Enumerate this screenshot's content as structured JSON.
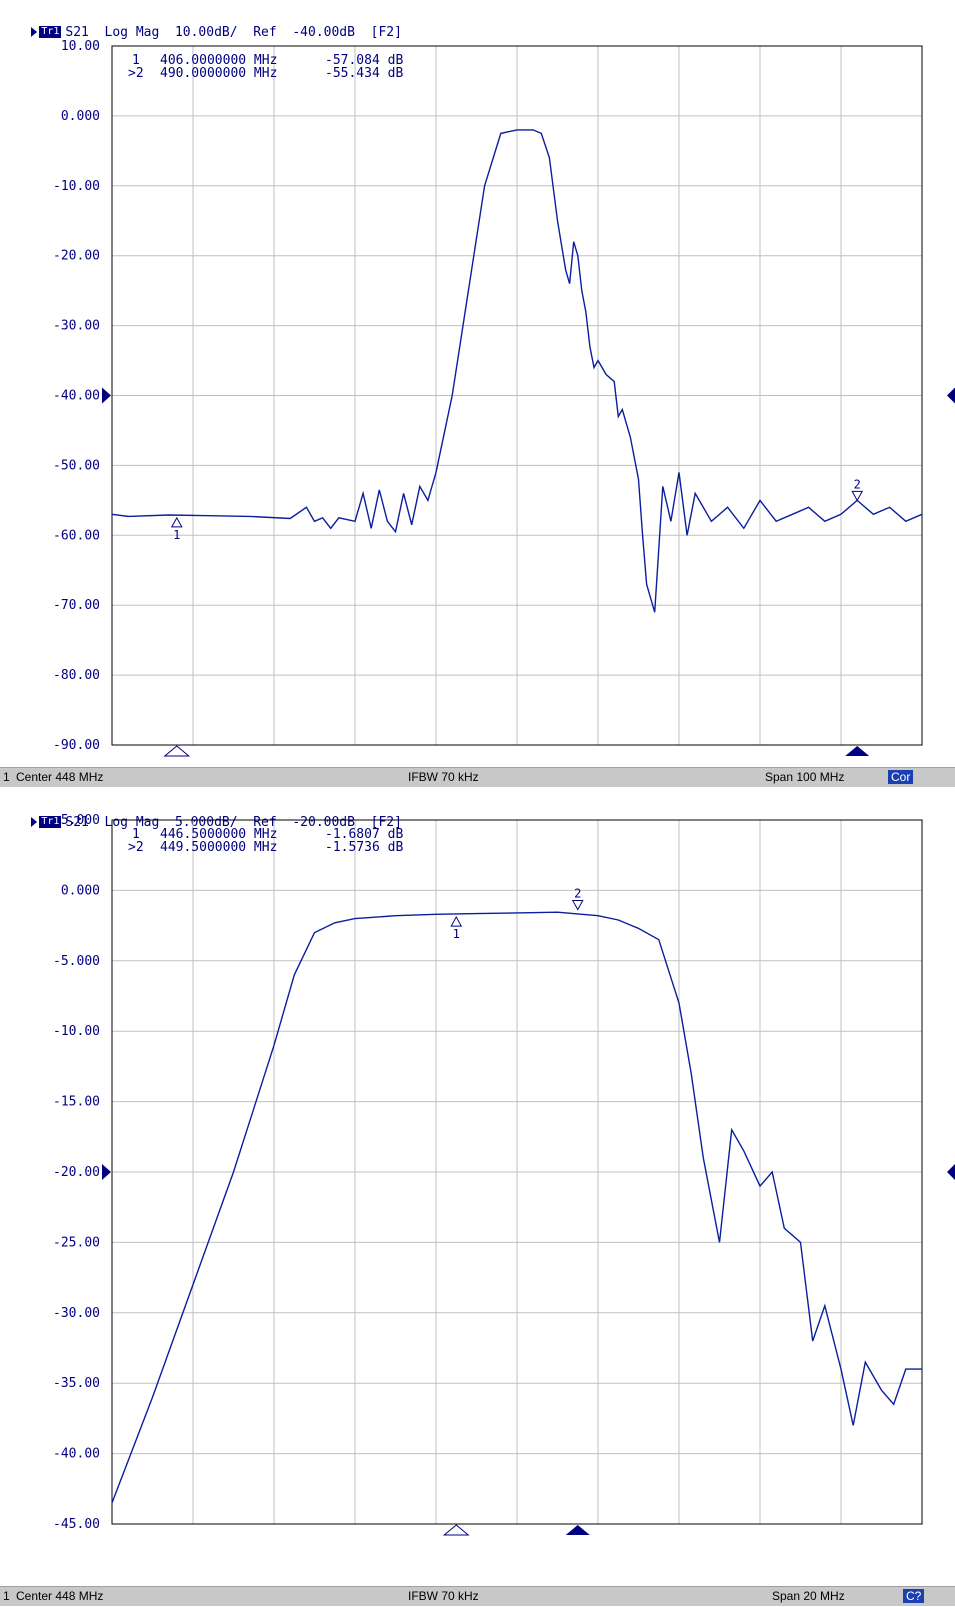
{
  "panels": [
    {
      "trace_badge": "Tr1",
      "header": "S21  Log Mag  10.00dB/  Ref  -40.00dB  [F2]",
      "markers": [
        {
          "id": "1",
          "freq": "406.0000000 MHz",
          "value": "-57.084 dB",
          "active": false,
          "label": "1"
        },
        {
          "id": "2",
          "freq": "490.0000000 MHz",
          "value": "-55.434 dB",
          "active": true,
          "label": ">2"
        }
      ],
      "y_labels": [
        "10.00",
        "0.000",
        "-10.00",
        "-20.00",
        "-30.00",
        "-40.00",
        "-50.00",
        "-60.00",
        "-70.00",
        "-80.00",
        "-90.00"
      ],
      "status": {
        "channel": "1",
        "center": "Center 448 MHz",
        "ifbw": "IFBW 70 kHz",
        "span": "Span 100 MHz",
        "flag": "Cor"
      }
    },
    {
      "trace_badge": "Tr1",
      "header": "S21  Log Mag  5.000dB/  Ref  -20.00dB  [F2]",
      "markers": [
        {
          "id": "1",
          "freq": "446.5000000 MHz",
          "value": "-1.6807 dB",
          "active": false,
          "label": "1"
        },
        {
          "id": "2",
          "freq": "449.5000000 MHz",
          "value": "-1.5736 dB",
          "active": true,
          "label": ">2"
        }
      ],
      "y_labels": [
        "5.000",
        "0.000",
        "-5.000",
        "-10.00",
        "-15.00",
        "-20.00",
        "-25.00",
        "-30.00",
        "-35.00",
        "-40.00",
        "-45.00"
      ],
      "status": {
        "channel": "1",
        "center": "Center 448 MHz",
        "ifbw": "IFBW 70 kHz",
        "span": "Span 20 MHz",
        "flag": "C?"
      }
    }
  ],
  "colors": {
    "trace": "#0a1e9e",
    "grid": "#c0c0c0",
    "text": "#000080",
    "statusbar": "#c8c8c8"
  },
  "chart_data": [
    {
      "type": "line",
      "title": "S21 Log Mag 10.00dB/ Ref -40.00dB [F2]",
      "xlabel": "",
      "ylabel": "",
      "x_unit": "MHz",
      "xlim": [
        398,
        498
      ],
      "ylim": [
        -90,
        10
      ],
      "reference_level": -40,
      "grid": true,
      "series": [
        {
          "x": [
            398,
            400,
            405,
            410,
            415,
            420,
            422,
            423,
            424,
            425,
            426,
            428,
            429,
            430,
            431,
            432,
            433,
            434,
            435,
            436,
            437,
            438,
            440,
            442,
            444,
            446,
            448,
            450,
            451,
            452,
            453,
            454,
            454.5,
            455,
            455.5,
            456,
            456.5,
            457,
            457.5,
            458,
            459,
            460,
            460.5,
            461,
            462,
            463,
            463.5,
            464,
            465,
            466,
            467,
            468,
            469,
            470,
            472,
            474,
            476,
            478,
            480,
            482,
            484,
            486,
            488,
            490,
            492,
            494,
            496,
            498
          ],
          "y": [
            -57,
            -57.3,
            -57.1,
            -57.2,
            -57.3,
            -57.6,
            -56,
            -58,
            -57.5,
            -59,
            -57.5,
            -58,
            -54,
            -59,
            -53.5,
            -58,
            -59.5,
            -54,
            -58.5,
            -53,
            -55,
            -51,
            -40,
            -25,
            -10,
            -2.5,
            -2,
            -2,
            -2.5,
            -6,
            -15,
            -22,
            -24,
            -18,
            -20,
            -25,
            -28,
            -33,
            -36,
            -35,
            -37,
            -38,
            -43,
            -42,
            -46,
            -52,
            -60,
            -67,
            -71,
            -53,
            -58,
            -51,
            -60,
            -54,
            -58,
            -56,
            -59,
            -55,
            -58,
            -57,
            -56,
            -58,
            -57,
            -55,
            -57,
            -56,
            -58,
            -57
          ]
        }
      ],
      "markers": [
        {
          "id": 1,
          "x": 406.0,
          "y": -57.084
        },
        {
          "id": 2,
          "x": 490.0,
          "y": -55.434
        }
      ]
    },
    {
      "type": "line",
      "title": "S21 Log Mag 5.000dB/ Ref -20.00dB [F2]",
      "xlabel": "",
      "ylabel": "",
      "x_unit": "MHz",
      "xlim": [
        438,
        458
      ],
      "ylim": [
        -45,
        5
      ],
      "reference_level": -20,
      "grid": true,
      "series": [
        {
          "x": [
            438,
            439,
            440,
            441,
            442,
            442.5,
            443,
            443.5,
            444,
            445,
            446,
            447,
            448,
            449,
            450,
            450.5,
            451,
            451.5,
            452,
            452.3,
            452.6,
            453,
            453.3,
            453.6,
            454,
            454.3,
            454.6,
            455,
            455.3,
            455.6,
            456,
            456.3,
            456.6,
            457,
            457.3,
            457.6,
            458
          ],
          "y": [
            -43.5,
            -36,
            -28,
            -20,
            -11,
            -6,
            -3,
            -2.3,
            -2,
            -1.8,
            -1.7,
            -1.65,
            -1.6,
            -1.55,
            -1.8,
            -2.1,
            -2.7,
            -3.5,
            -8,
            -13,
            -19,
            -25,
            -17,
            -18.5,
            -21,
            -20,
            -24,
            -25,
            -32,
            -29.5,
            -34,
            -38,
            -33.5,
            -35.5,
            -36.5,
            -34,
            -34
          ]
        }
      ],
      "markers": [
        {
          "id": 1,
          "x": 446.5,
          "y": -1.6807
        },
        {
          "id": 2,
          "x": 449.5,
          "y": -1.5736
        }
      ]
    }
  ]
}
